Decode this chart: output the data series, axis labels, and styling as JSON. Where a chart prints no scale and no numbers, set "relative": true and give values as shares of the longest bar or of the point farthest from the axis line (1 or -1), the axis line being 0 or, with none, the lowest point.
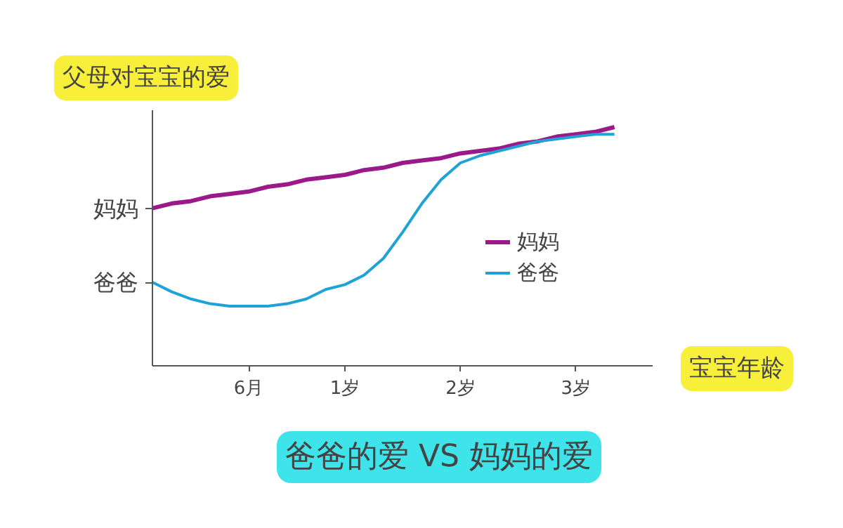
{
  "chart_data": {
    "type": "line",
    "title": "爸爸的爱 VS 妈妈的爱",
    "ylabel": "父母对宝宝的爱",
    "xlabel": "宝宝年龄",
    "relative": true,
    "legend": "right",
    "marker": "none",
    "line_style": "solid",
    "categories": [
      null,
      null,
      null,
      null,
      null,
      "6月",
      null,
      null,
      null,
      null,
      "1岁",
      null,
      null,
      null,
      null,
      null,
      "2岁",
      null,
      null,
      null,
      null,
      null,
      "3岁",
      null,
      null
    ],
    "series": [
      {
        "name": "妈妈",
        "color": "#9b1a8a",
        "values": [
          0.66,
          0.68,
          0.69,
          0.71,
          0.72,
          0.73,
          0.75,
          0.76,
          0.78,
          0.79,
          0.8,
          0.82,
          0.83,
          0.85,
          0.86,
          0.87,
          0.89,
          0.9,
          0.91,
          0.93,
          0.94,
          0.96,
          0.97,
          0.98,
          1.0
        ]
      },
      {
        "name": "爸爸",
        "color": "#1fa3d6",
        "values": [
          0.35,
          0.31,
          0.28,
          0.26,
          0.25,
          0.25,
          0.25,
          0.26,
          0.28,
          0.32,
          0.34,
          0.38,
          0.45,
          0.56,
          0.68,
          0.78,
          0.85,
          0.88,
          0.9,
          0.92,
          0.94,
          0.95,
          0.96,
          0.97,
          0.97
        ]
      }
    ],
    "annotations": [
      "妈妈",
      "爸爸"
    ]
  }
}
